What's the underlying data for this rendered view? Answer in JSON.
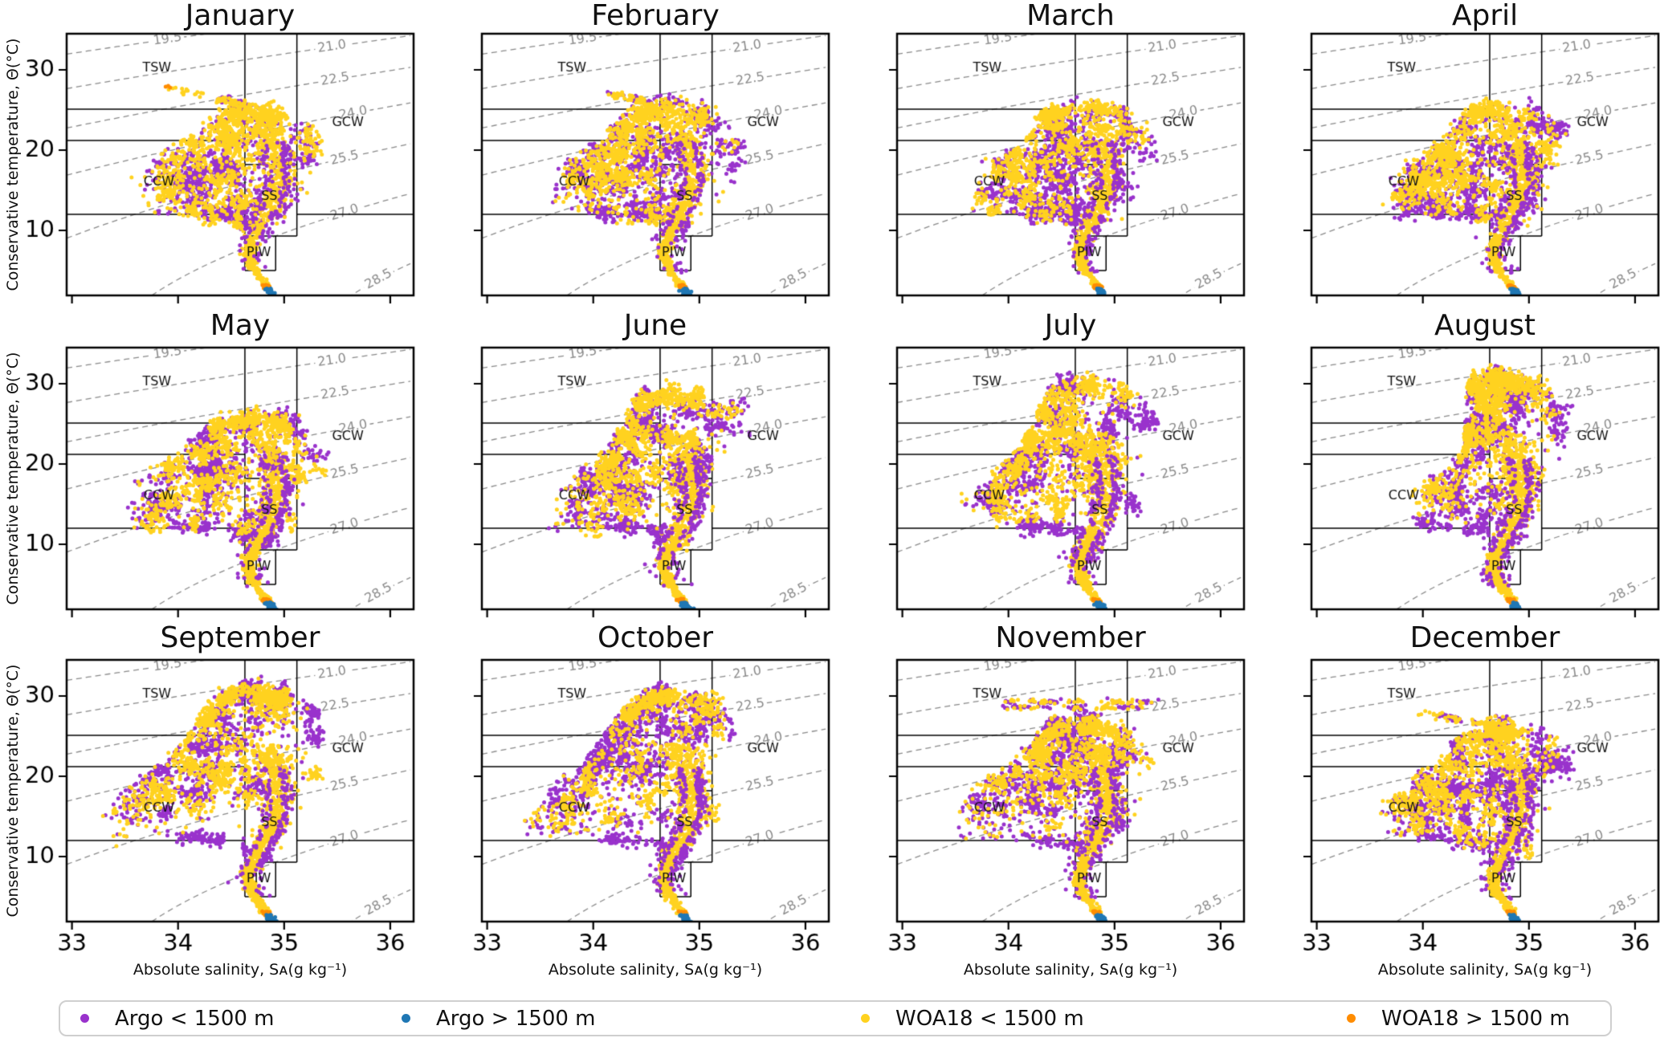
{
  "figure": {
    "background": "#ffffff"
  },
  "chart_data": {
    "type": "scatter",
    "layout": "3x4 monthly small multiples of conservative temperature vs absolute salinity (T-S diagrams)",
    "title": "",
    "xlabel": "Absolute salinity, Sᴀ(g kg⁻¹)",
    "ylabel": "Conservative temperature, Θ(°C)",
    "axes": {
      "xlim": [
        32.95,
        36.22
      ],
      "ylim": [
        1.9,
        34.5
      ],
      "xticks": [
        33,
        34,
        35,
        36
      ],
      "yticks": [
        10,
        20,
        30
      ],
      "grid": false
    },
    "isopycnals": {
      "comment": "dashed potential-density anomaly contours, sigma = 28.152 - 0.0735T - 0.00469T^2 + (0.802-0.002T)(S-35)",
      "levels": [
        19.5,
        21.0,
        22.5,
        24.0,
        25.5,
        27.0,
        28.5
      ],
      "label_s": [
        33.9,
        35.45,
        35.48,
        35.65,
        35.57,
        35.57,
        35.89
      ],
      "color": "#8a8a8a"
    },
    "water_masses": [
      {
        "label": "TSW",
        "pos": [
          33.8,
          30.2
        ]
      },
      {
        "label": "GCW",
        "pos": [
          35.6,
          23.4
        ]
      },
      {
        "label": "CCW",
        "pos": [
          33.82,
          16.0
        ]
      },
      {
        "label": "SS",
        "pos": [
          34.86,
          14.2
        ]
      },
      {
        "label": "PIW",
        "pos": [
          34.76,
          7.2
        ]
      }
    ],
    "boundaries": {
      "v1": 34.63,
      "v2": 35.12,
      "tsw_bottom": 25.1,
      "ccw_top": 21.2,
      "ccw_bottom": 12.0,
      "gcw_bottom": 12.0,
      "ss_top": 18.2,
      "ss_bottom": 9.3,
      "piw_bottom": 5.0,
      "piw_right": 34.92
    },
    "series": [
      {
        "name": "Argo < 1500 m",
        "color": "#9932cc"
      },
      {
        "name": "Argo > 1500 m",
        "color": "#1f77b4"
      },
      {
        "name": "WOA18 < 1500 m",
        "color": "#ffd21f"
      },
      {
        "name": "WOA18 > 1500 m",
        "color": "#ff8c00"
      }
    ],
    "spine": [
      [
        24,
        34.8
      ],
      [
        20,
        34.91
      ],
      [
        16,
        34.94
      ],
      [
        13,
        34.87
      ],
      [
        10.5,
        34.76
      ],
      [
        9,
        34.7
      ],
      [
        7,
        34.66
      ],
      [
        5.5,
        34.7
      ],
      [
        4.2,
        34.77
      ],
      [
        3.2,
        34.83
      ]
    ],
    "tail": {
      "t_start": 3.3,
      "s_start": 34.82,
      "slope": 0.05
    },
    "months": [
      {
        "label": "January",
        "s_min": 33.6,
        "t_top": 25.9,
        "arm_t": 22.5,
        "warm_fill": 0.1,
        "wing": 0.3,
        "spine_w": 0.9,
        "streak": {
          "type": "diag",
          "from": [
            33.9,
            27.85
          ],
          "to": [
            34.62,
            25.6
          ],
          "orange_tip": true
        }
      },
      {
        "label": "February",
        "s_min": 33.58,
        "t_top": 26.4,
        "arm_t": 23.0,
        "warm_fill": 0.12,
        "wing": 0.3,
        "spine_w": 0.95,
        "streak": {
          "type": "diag",
          "from": [
            34.18,
            27.0
          ],
          "to": [
            34.55,
            25.9
          ],
          "orange_tip": false
        }
      },
      {
        "label": "March",
        "s_min": 33.6,
        "t_top": 26.7,
        "arm_t": 23.0,
        "warm_fill": 0.15,
        "wing": 0.35,
        "spine_w": 1.0,
        "streak": null
      },
      {
        "label": "April",
        "s_min": 33.68,
        "t_top": 26.3,
        "arm_t": 23.5,
        "warm_fill": 0.15,
        "wing": 0.3,
        "spine_w": 1.05,
        "streak": null
      },
      {
        "label": "May",
        "s_min": 33.5,
        "t_top": 27.0,
        "arm_t": 23.5,
        "warm_fill": 0.2,
        "wing": 0.6,
        "spine_w": 1.05,
        "streak": null
      },
      {
        "label": "June",
        "s_min": 33.62,
        "t_top": 29.6,
        "arm_t": 28.0,
        "warm_fill": 0.45,
        "wing": 0.4,
        "spine_w": 1.1,
        "streak": null
      },
      {
        "label": "July",
        "s_min": 33.6,
        "t_top": 31.2,
        "arm_t": 28.5,
        "warm_fill": 0.75,
        "wing": 0.4,
        "spine_w": 1.2,
        "streak": null
      },
      {
        "label": "August",
        "s_min": 33.88,
        "t_top": 31.5,
        "arm_t": 29.0,
        "warm_fill": 0.8,
        "wing": 0.25,
        "spine_w": 1.3,
        "streak": null
      },
      {
        "label": "September",
        "s_min": 33.35,
        "t_top": 31.8,
        "arm_t": 28.0,
        "warm_fill": 0.8,
        "wing": 1.0,
        "spine_w": 1.15,
        "streak": null
      },
      {
        "label": "October",
        "s_min": 33.42,
        "t_top": 31.2,
        "arm_t": 28.5,
        "warm_fill": 0.85,
        "wing": 1.0,
        "spine_w": 1.3,
        "streak": null
      },
      {
        "label": "November",
        "s_min": 33.5,
        "t_top": 27.6,
        "arm_t": 26.0,
        "warm_fill": 0.5,
        "wing": 0.7,
        "spine_w": 1.1,
        "streak": {
          "type": "horiz",
          "rows": [
            {
              "t": 29.3,
              "s0": 34.0,
              "s1": 35.3
            },
            {
              "t": 28.6,
              "s0": 33.95,
              "s1": 35.25
            }
          ]
        }
      },
      {
        "label": "December",
        "s_min": 33.62,
        "t_top": 26.8,
        "arm_t": 24.5,
        "warm_fill": 0.35,
        "wing": 0.4,
        "spine_w": 1.0,
        "streak": {
          "type": "diag",
          "from": [
            34.0,
            27.9
          ],
          "to": [
            34.7,
            26.2
          ],
          "orange_tip": false
        }
      }
    ]
  }
}
